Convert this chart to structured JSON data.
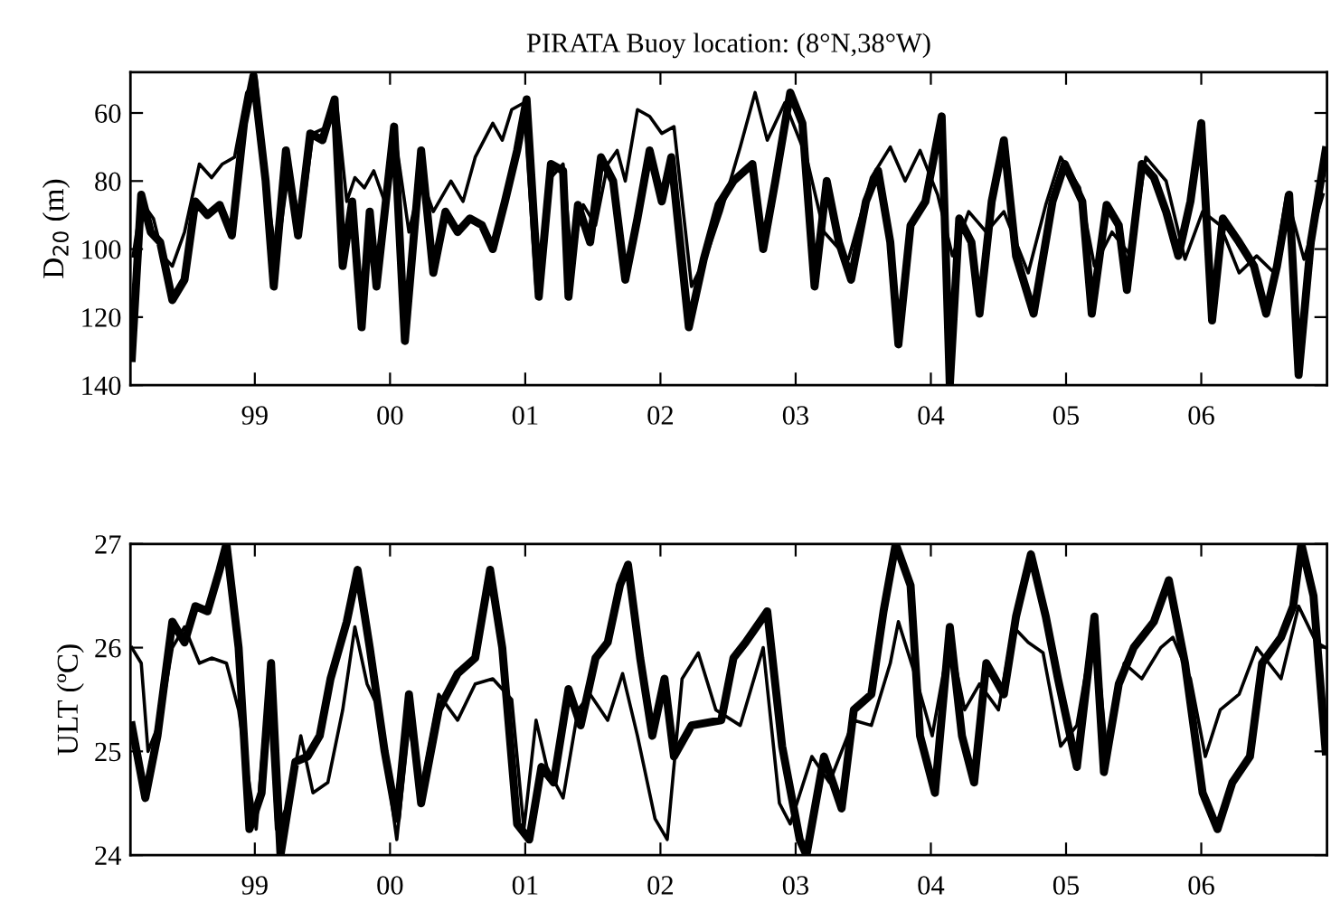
{
  "chart_data": [
    {
      "type": "line",
      "title": "PIRATA Buoy location: (8°N,38°W)",
      "ylabel": "D$_{20}$ (m)",
      "xlim": [
        1998.08,
        2006.93
      ],
      "ylim": [
        140,
        48
      ],
      "xticks": [
        {
          "value": 1999,
          "label": "99"
        },
        {
          "value": 2000,
          "label": "00"
        },
        {
          "value": 2001,
          "label": "01"
        },
        {
          "value": 2002,
          "label": "02"
        },
        {
          "value": 2003,
          "label": "03"
        },
        {
          "value": 2004,
          "label": "04"
        },
        {
          "value": 2005,
          "label": "05"
        },
        {
          "value": 2006,
          "label": "06"
        }
      ],
      "yticks": [
        60,
        80,
        100,
        120,
        140
      ],
      "grid": false,
      "series": [
        {
          "color": "#000000",
          "x": [
            1998.09,
            1998.16,
            1998.23,
            1998.3,
            1998.39,
            1998.48,
            1998.56,
            1998.65,
            1998.74,
            1998.83,
            1998.92,
            1998.99,
            1999.08,
            1999.14,
            1999.23,
            1999.32,
            1999.41,
            1999.5,
            1999.59,
            1999.65,
            1999.72,
            1999.79,
            1999.85,
            1999.9,
            2000.03,
            2000.11,
            2000.23,
            2000.32,
            2000.41,
            2000.5,
            2000.59,
            2000.68,
            2000.76,
            2000.85,
            2000.94,
            2001.01,
            2001.1,
            2001.19,
            2001.28,
            2001.32,
            2001.39,
            2001.48,
            2001.56,
            2001.65,
            2001.74,
            2001.83,
            2001.92,
            2002.01,
            2002.08,
            2002.21,
            2002.32,
            2002.43,
            2002.54,
            2002.68,
            2002.76,
            2002.85,
            2002.96,
            2003.05,
            2003.14,
            2003.23,
            2003.32,
            2003.41,
            2003.52,
            2003.61,
            2003.7,
            2003.76,
            2003.85,
            2003.96,
            2004.08,
            2004.14,
            2004.21,
            2004.3,
            2004.36,
            2004.45,
            2004.54,
            2004.63,
            2004.76,
            2004.9,
            2004.99,
            2005.12,
            2005.19,
            2005.3,
            2005.39,
            2005.45,
            2005.56,
            2005.65,
            2005.74,
            2005.83,
            2005.92,
            2006.0,
            2006.08,
            2006.16,
            2006.28,
            2006.39,
            2006.48,
            2006.56,
            2006.65,
            2006.72,
            2006.81,
            2006.92
          ],
          "values": [
            132,
            84,
            95,
            98,
            115,
            109,
            86,
            90,
            87,
            96,
            63,
            49,
            80,
            111,
            71,
            96,
            66,
            68,
            56,
            105,
            86,
            123,
            89,
            111,
            64,
            127,
            71,
            107,
            89,
            95,
            91,
            93,
            100,
            86,
            71,
            56,
            114,
            75,
            77,
            114,
            87,
            98,
            73,
            80,
            109,
            91,
            71,
            86,
            73,
            123,
            103,
            87,
            80,
            75,
            100,
            80,
            54,
            63,
            111,
            80,
            98,
            109,
            86,
            77,
            98,
            128,
            93,
            86,
            61,
            140,
            91,
            98,
            119,
            86,
            68,
            102,
            119,
            86,
            75,
            86,
            119,
            87,
            93,
            112,
            75,
            79,
            89,
            102,
            86,
            63,
            121,
            91,
            98,
            105,
            119,
            105,
            84,
            137,
            98,
            71
          ]
        },
        {
          "color": "#000000",
          "x": [
            1998.1,
            1998.16,
            1998.25,
            1998.32,
            1998.39,
            1998.48,
            1998.59,
            1998.68,
            1998.76,
            1998.85,
            1998.94,
            1999.01,
            1999.1,
            1999.16,
            1999.25,
            1999.34,
            1999.43,
            1999.54,
            1999.61,
            1999.68,
            1999.74,
            1999.81,
            1999.88,
            1999.96,
            2000.05,
            2000.14,
            2000.23,
            2000.32,
            2000.45,
            2000.54,
            2000.63,
            2000.76,
            2000.83,
            2000.9,
            2000.99,
            2001.08,
            2001.19,
            2001.28,
            2001.34,
            2001.43,
            2001.52,
            2001.61,
            2001.68,
            2001.74,
            2001.83,
            2001.92,
            2002.01,
            2002.1,
            2002.23,
            2002.34,
            2002.45,
            2002.59,
            2002.7,
            2002.79,
            2002.92,
            2003.08,
            2003.21,
            2003.39,
            2003.56,
            2003.7,
            2003.81,
            2003.92,
            2004.05,
            2004.16,
            2004.28,
            2004.41,
            2004.54,
            2004.72,
            2004.85,
            2004.96,
            2005.1,
            2005.21,
            2005.34,
            2005.48,
            2005.59,
            2005.74,
            2005.88,
            2006.01,
            2006.14,
            2006.28,
            2006.41,
            2006.54,
            2006.63,
            2006.76,
            2006.9
          ],
          "values": [
            102,
            86,
            91,
            102,
            105,
            95,
            75,
            79,
            75,
            73,
            54,
            50,
            86,
            103,
            77,
            93,
            66,
            64,
            59,
            86,
            79,
            82,
            77,
            86,
            70,
            95,
            79,
            89,
            80,
            86,
            73,
            63,
            68,
            59,
            57,
            111,
            79,
            75,
            102,
            87,
            93,
            75,
            71,
            80,
            59,
            61,
            66,
            64,
            111,
            102,
            89,
            70,
            54,
            68,
            57,
            73,
            95,
            103,
            79,
            70,
            80,
            71,
            84,
            102,
            89,
            95,
            89,
            107,
            87,
            73,
            82,
            105,
            95,
            102,
            73,
            80,
            103,
            89,
            93,
            107,
            102,
            107,
            84,
            103,
            84
          ]
        }
      ]
    },
    {
      "type": "line",
      "ylabel": "ULT (ºC)",
      "xlim": [
        1998.08,
        2006.93
      ],
      "ylim": [
        24,
        27
      ],
      "xticks": [
        {
          "value": 1999,
          "label": "99"
        },
        {
          "value": 2000,
          "label": "00"
        },
        {
          "value": 2001,
          "label": "01"
        },
        {
          "value": 2002,
          "label": "02"
        },
        {
          "value": 2003,
          "label": "03"
        },
        {
          "value": 2004,
          "label": "04"
        },
        {
          "value": 2005,
          "label": "05"
        },
        {
          "value": 2006,
          "label": "06"
        }
      ],
      "yticks": [
        24,
        25,
        26,
        27
      ],
      "grid": false,
      "series": [
        {
          "color": "#000000",
          "x": [
            1998.09,
            1998.19,
            1998.28,
            1998.39,
            1998.48,
            1998.56,
            1998.65,
            1998.74,
            1998.79,
            1998.88,
            1998.96,
            1999.05,
            1999.12,
            1999.19,
            1999.3,
            1999.39,
            1999.48,
            1999.56,
            1999.68,
            1999.76,
            1999.85,
            1999.96,
            2000.05,
            2000.14,
            2000.23,
            2000.36,
            2000.5,
            2000.63,
            2000.74,
            2000.83,
            2000.94,
            2001.03,
            2001.12,
            2001.21,
            2001.32,
            2001.41,
            2001.52,
            2001.61,
            2001.7,
            2001.76,
            2001.85,
            2001.94,
            2002.03,
            2002.1,
            2002.23,
            2002.45,
            2002.54,
            2002.63,
            2002.79,
            2002.9,
            2003.03,
            2003.08,
            2003.21,
            2003.34,
            2003.43,
            2003.56,
            2003.65,
            2003.74,
            2003.85,
            2003.92,
            2004.03,
            2004.14,
            2004.23,
            2004.32,
            2004.41,
            2004.54,
            2004.63,
            2004.74,
            2004.85,
            2004.94,
            2005.08,
            2005.21,
            2005.28,
            2005.39,
            2005.5,
            2005.65,
            2005.76,
            2005.88,
            2006.01,
            2006.12,
            2006.23,
            2006.36,
            2006.45,
            2006.59,
            2006.68,
            2006.74,
            2006.83,
            2006.92
          ],
          "values": [
            25.25,
            24.55,
            25.15,
            26.25,
            26.05,
            26.4,
            26.35,
            26.75,
            27.0,
            26.0,
            24.25,
            24.6,
            25.85,
            24.0,
            24.9,
            24.95,
            25.15,
            25.7,
            26.25,
            26.75,
            26.0,
            25.0,
            24.35,
            25.55,
            24.5,
            25.4,
            25.75,
            25.9,
            26.75,
            26.0,
            24.3,
            24.15,
            24.85,
            24.7,
            25.6,
            25.25,
            25.9,
            26.05,
            26.6,
            26.8,
            25.9,
            25.15,
            25.7,
            24.95,
            25.25,
            25.3,
            25.9,
            26.05,
            26.35,
            25.05,
            24.15,
            24.0,
            24.95,
            24.45,
            25.4,
            25.55,
            26.35,
            27.0,
            26.6,
            25.15,
            24.6,
            26.2,
            25.15,
            24.7,
            25.85,
            25.55,
            26.3,
            26.9,
            26.3,
            25.7,
            24.85,
            26.3,
            24.8,
            25.65,
            26.0,
            26.25,
            26.65,
            25.85,
            24.6,
            24.25,
            24.7,
            24.95,
            25.85,
            26.1,
            26.4,
            27.0,
            26.5,
            25.0
          ]
        },
        {
          "color": "#000000",
          "x": [
            1998.09,
            1998.16,
            1998.21,
            1998.3,
            1998.39,
            1998.48,
            1998.59,
            1998.68,
            1998.79,
            1998.88,
            1998.94,
            1999.01,
            1999.1,
            1999.16,
            1999.25,
            1999.34,
            1999.43,
            1999.54,
            1999.65,
            1999.74,
            1999.83,
            1999.92,
            2000.05,
            2000.14,
            2000.23,
            2000.36,
            2000.5,
            2000.63,
            2000.76,
            2000.9,
            2000.99,
            2001.08,
            2001.16,
            2001.28,
            2001.39,
            2001.48,
            2001.61,
            2001.72,
            2001.83,
            2001.96,
            2002.05,
            2002.16,
            2002.28,
            2002.41,
            2002.59,
            2002.76,
            2002.88,
            2002.96,
            2003.12,
            2003.25,
            2003.43,
            2003.56,
            2003.7,
            2003.76,
            2003.88,
            2004.01,
            2004.14,
            2004.25,
            2004.36,
            2004.5,
            2004.61,
            2004.72,
            2004.83,
            2004.96,
            2005.08,
            2005.21,
            2005.3,
            2005.43,
            2005.56,
            2005.7,
            2005.79,
            2005.92,
            2006.03,
            2006.14,
            2006.28,
            2006.41,
            2006.59,
            2006.72,
            2006.85,
            2006.92
          ],
          "values": [
            26.0,
            25.85,
            25.0,
            25.3,
            26.0,
            26.2,
            25.85,
            25.9,
            25.85,
            25.4,
            24.85,
            24.25,
            25.65,
            24.25,
            24.5,
            25.15,
            24.6,
            24.7,
            25.4,
            26.2,
            25.65,
            25.4,
            24.15,
            25.25,
            24.65,
            25.55,
            25.3,
            25.65,
            25.7,
            25.5,
            24.25,
            25.3,
            24.85,
            24.55,
            25.4,
            25.55,
            25.3,
            25.75,
            25.15,
            24.35,
            24.15,
            25.7,
            25.95,
            25.4,
            25.25,
            26.0,
            24.5,
            24.3,
            24.95,
            24.7,
            25.3,
            25.25,
            25.85,
            26.25,
            25.75,
            25.15,
            26.1,
            25.4,
            25.65,
            25.4,
            26.2,
            26.05,
            25.95,
            25.05,
            25.25,
            26.25,
            25.0,
            25.85,
            25.7,
            26.0,
            26.1,
            25.7,
            24.95,
            25.4,
            25.55,
            26.0,
            25.7,
            26.4,
            26.05,
            26.0
          ]
        }
      ]
    }
  ]
}
